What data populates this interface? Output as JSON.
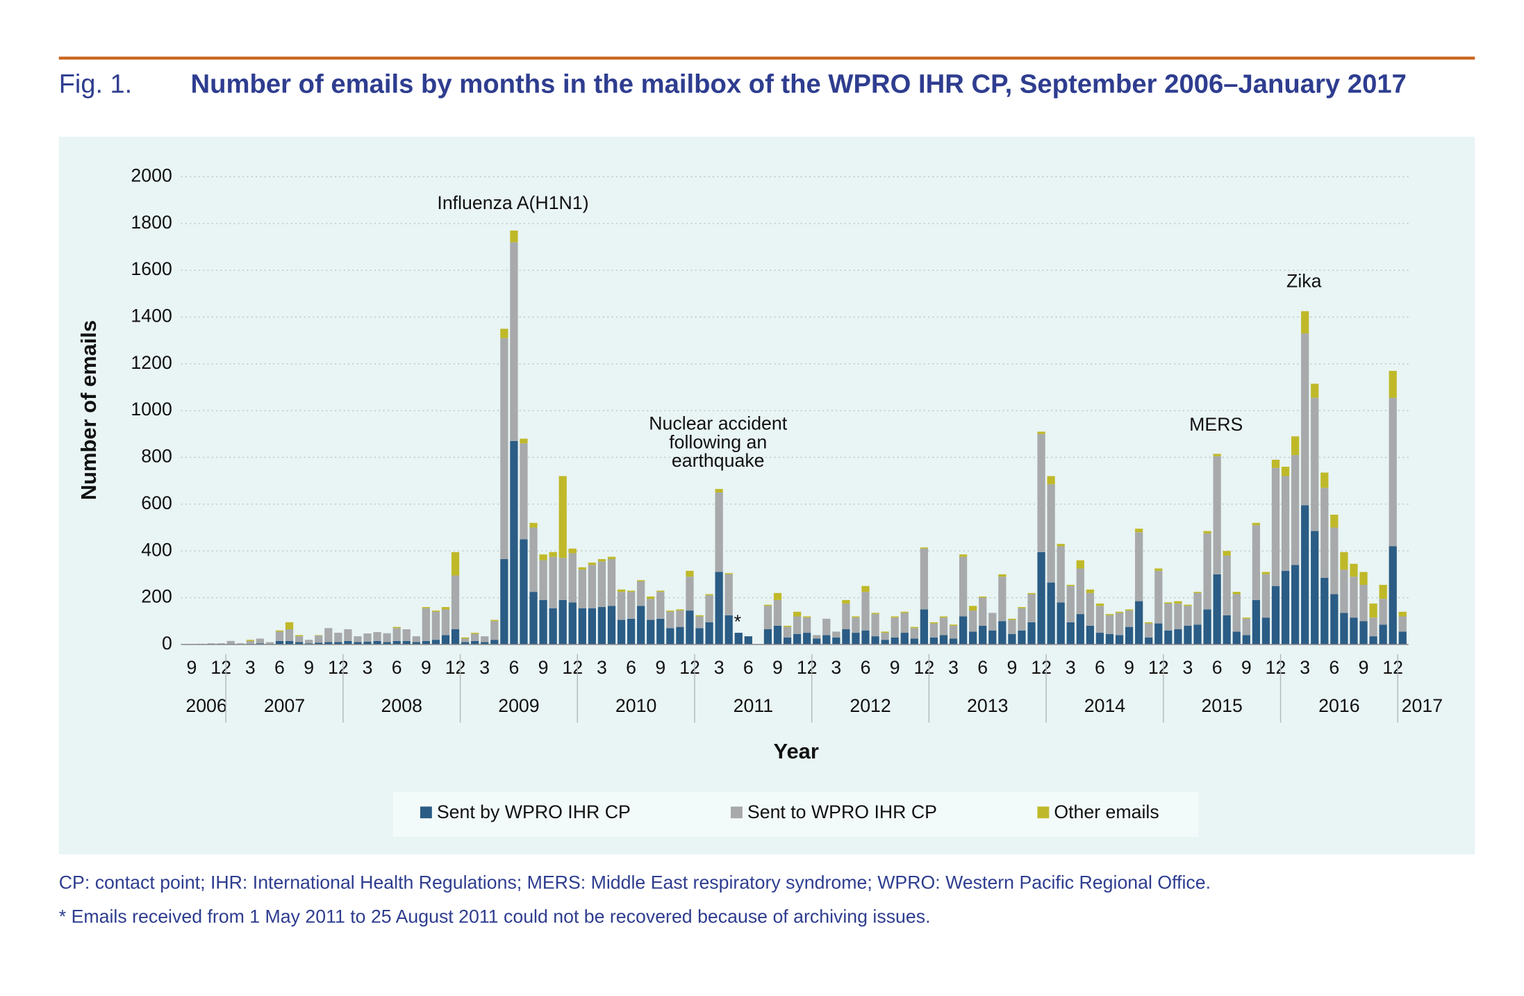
{
  "chart_data": {
    "type": "stacked_bar",
    "figure_label": "Fig. 1.",
    "title": "Number of emails by months in the mailbox of the WPRO IHR CP, September 2006–January 2017",
    "y_label": "Number of emails",
    "x_label": "Year",
    "categories": [
      "9",
      null,
      null,
      "12",
      null,
      null,
      "3",
      null,
      null,
      "6",
      null,
      null,
      "9",
      null,
      null,
      "12",
      null,
      null,
      "3",
      null,
      null,
      "6",
      null,
      null,
      "9",
      null,
      null,
      "12",
      null,
      null,
      "3",
      null,
      null,
      "6",
      null,
      null,
      "9",
      null,
      null,
      "12",
      null,
      null,
      "3",
      null,
      null,
      "6",
      null,
      null,
      "9",
      null,
      null,
      "12",
      null,
      null,
      "3",
      null,
      null,
      "6",
      null,
      null,
      "9",
      null,
      null,
      "12",
      null,
      null,
      "3",
      null,
      null,
      "6",
      null,
      null,
      "9",
      null,
      null,
      "12",
      null,
      null,
      "3",
      null,
      null,
      "6",
      null,
      null,
      "9",
      null,
      null,
      "12",
      null,
      null,
      "3",
      null,
      null,
      "6",
      null,
      null,
      "9",
      null,
      null,
      "12",
      null,
      null,
      "3",
      null,
      null,
      "6",
      null,
      null,
      "9",
      null,
      null,
      "12",
      null,
      null,
      "3",
      null,
      null,
      "6",
      null,
      null,
      "9",
      null,
      null,
      "12",
      null
    ],
    "years": [
      "2006",
      "2007",
      "2008",
      "2009",
      "2010",
      "2011",
      "2012",
      "2013",
      "2014",
      "2015",
      "2016",
      "2017"
    ],
    "ylim": [
      0,
      2000
    ],
    "yticks": [
      0,
      200,
      400,
      600,
      800,
      1000,
      1200,
      1400,
      1600,
      1800,
      2000
    ],
    "grid": true,
    "series": [
      {
        "name": "Sent by WPRO IHR CP",
        "color": "#2a5c85",
        "values": [
          0,
          0,
          0,
          0,
          2,
          0,
          3,
          5,
          2,
          15,
          15,
          10,
          5,
          8,
          10,
          10,
          15,
          10,
          12,
          15,
          10,
          15,
          15,
          10,
          15,
          20,
          40,
          65,
          10,
          15,
          10,
          20,
          365,
          870,
          450,
          225,
          190,
          155,
          190,
          180,
          155,
          155,
          160,
          165,
          105,
          110,
          165,
          105,
          110,
          70,
          75,
          145,
          70,
          95,
          310,
          125,
          50,
          35,
          0,
          65,
          80,
          30,
          45,
          50,
          25,
          40,
          30,
          65,
          50,
          60,
          35,
          20,
          30,
          50,
          25,
          150,
          30,
          40,
          25,
          120,
          55,
          80,
          60,
          100,
          45,
          60,
          95,
          395,
          265,
          180,
          95,
          130,
          80,
          50,
          45,
          40,
          75,
          185,
          30,
          90,
          60,
          65,
          80,
          85,
          150,
          300,
          125,
          55,
          40,
          190,
          115,
          250,
          315,
          340,
          595,
          485,
          285,
          215,
          135,
          115,
          100,
          35,
          85,
          420,
          55
        ]
      },
      {
        "name": "Sent to WPRO IHR CP",
        "color": "#a7a9ab",
        "values": [
          2,
          3,
          5,
          5,
          13,
          5,
          12,
          20,
          8,
          40,
          50,
          25,
          15,
          30,
          60,
          40,
          50,
          25,
          35,
          38,
          38,
          55,
          50,
          25,
          140,
          120,
          110,
          230,
          15,
          30,
          25,
          80,
          945,
          850,
          410,
          275,
          170,
          220,
          180,
          210,
          165,
          185,
          195,
          200,
          120,
          115,
          105,
          90,
          115,
          70,
          70,
          145,
          50,
          115,
          340,
          175,
          0,
          0,
          0,
          100,
          110,
          45,
          75,
          65,
          15,
          70,
          25,
          110,
          65,
          165,
          95,
          30,
          85,
          85,
          45,
          260,
          60,
          75,
          55,
          255,
          90,
          120,
          75,
          190,
          60,
          95,
          120,
          505,
          420,
          240,
          155,
          195,
          140,
          115,
          80,
          95,
          70,
          295,
          60,
          225,
          115,
          110,
          85,
          135,
          325,
          505,
          255,
          160,
          70,
          320,
          185,
          505,
          405,
          470,
          735,
          570,
          385,
          285,
          185,
          175,
          155,
          80,
          110,
          635,
          65
        ]
      },
      {
        "name": "Other emails",
        "color": "#bfb929",
        "values": [
          0,
          0,
          0,
          0,
          0,
          0,
          5,
          0,
          0,
          5,
          30,
          5,
          0,
          2,
          0,
          0,
          0,
          0,
          0,
          0,
          0,
          5,
          0,
          0,
          5,
          5,
          10,
          100,
          5,
          5,
          0,
          5,
          40,
          50,
          20,
          20,
          25,
          20,
          350,
          20,
          10,
          10,
          10,
          10,
          10,
          5,
          5,
          10,
          5,
          5,
          5,
          25,
          5,
          5,
          15,
          5,
          0,
          0,
          0,
          5,
          30,
          5,
          20,
          5,
          0,
          0,
          0,
          15,
          5,
          25,
          5,
          5,
          5,
          5,
          5,
          5,
          5,
          5,
          5,
          10,
          20,
          5,
          0,
          10,
          5,
          5,
          5,
          10,
          35,
          10,
          5,
          35,
          15,
          10,
          5,
          5,
          5,
          15,
          5,
          10,
          5,
          10,
          5,
          5,
          10,
          10,
          20,
          10,
          5,
          10,
          10,
          35,
          40,
          80,
          95,
          60,
          65,
          55,
          75,
          55,
          55,
          60,
          60,
          115,
          20
        ]
      }
    ],
    "annotations": [
      [
        "Influenza A(H1N1)"
      ],
      [
        "Nuclear accident",
        "following an",
        "earthquake"
      ],
      [
        "MERS"
      ],
      [
        "Zika"
      ],
      [
        "*"
      ]
    ],
    "notes": [
      "CP: contact point; IHR: International Health Regulations; MERS: Middle East respiratory syndrome; WPRO: Western Pacific Regional Office.",
      "* Emails received from 1 May 2011 to 25 August 2011 could not be recovered because of archiving issues."
    ]
  }
}
